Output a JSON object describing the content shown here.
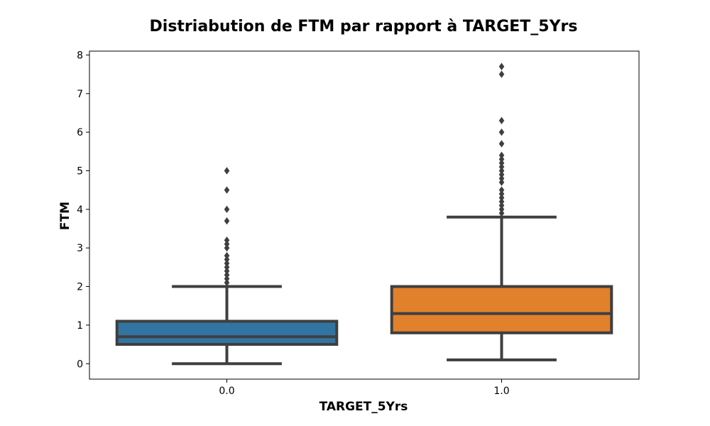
{
  "chart_data": {
    "type": "box",
    "title": "Distriabution de FTM par rapport à TARGET_5Yrs",
    "xlabel": "TARGET_5Yrs",
    "ylabel": "FTM",
    "ylim": [
      -0.4,
      8.1
    ],
    "yticks": [
      0,
      1,
      2,
      3,
      4,
      5,
      6,
      7,
      8
    ],
    "categories": [
      "0.0",
      "1.0"
    ],
    "grid": false,
    "legend": "none",
    "boxes": [
      {
        "category": "0.0",
        "color": "#3274a1",
        "whisker_low": 0.0,
        "q1": 0.5,
        "median": 0.7,
        "q3": 1.1,
        "whisker_high": 2.0,
        "outliers": [
          2.1,
          2.2,
          2.3,
          2.4,
          2.5,
          2.6,
          2.7,
          2.8,
          3.0,
          3.1,
          3.2,
          3.7,
          4.0,
          4.5,
          5.0
        ]
      },
      {
        "category": "1.0",
        "color": "#e1812c",
        "whisker_low": 0.1,
        "q1": 0.8,
        "median": 1.3,
        "q3": 2.0,
        "whisker_high": 3.8,
        "outliers": [
          3.9,
          4.0,
          4.1,
          4.2,
          4.3,
          4.4,
          4.5,
          4.7,
          4.8,
          4.9,
          5.0,
          5.1,
          5.2,
          5.3,
          5.4,
          5.7,
          6.0,
          6.3,
          7.5,
          7.7
        ]
      }
    ]
  }
}
